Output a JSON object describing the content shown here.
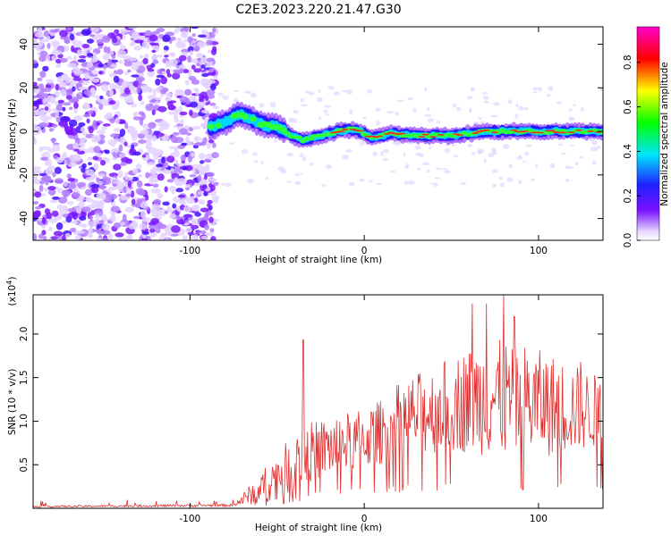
{
  "title": "C2E3.2023.220.21.47.G30",
  "chart_data": [
    {
      "type": "heatmap",
      "xlabel": "Height of straight line (km)",
      "ylabel": "Frequency (Hz)",
      "xlim": [
        -190,
        137
      ],
      "ylim": [
        -50,
        48
      ],
      "xticks": [
        -100,
        0,
        100
      ],
      "yticks": [
        -40,
        -20,
        0,
        20,
        40
      ],
      "colorbar": {
        "label": "Normalized spectral amplitude",
        "range": [
          0.0,
          0.96
        ],
        "ticks": [
          0.0,
          0.2,
          0.4,
          0.6,
          0.8
        ],
        "colors": [
          "#e8dcff",
          "#6a00ff",
          "#1a1aff",
          "#00e5ff",
          "#00ff00",
          "#ffff00",
          "#ff0000",
          "#ff00cc"
        ]
      },
      "ridge_frequency_hz": [
        {
          "x": -88,
          "y": 2
        },
        {
          "x": -80,
          "y": 4
        },
        {
          "x": -72,
          "y": 8
        },
        {
          "x": -65,
          "y": 6
        },
        {
          "x": -58,
          "y": 3
        },
        {
          "x": -50,
          "y": 2
        },
        {
          "x": -42,
          "y": -2
        },
        {
          "x": -35,
          "y": -4
        },
        {
          "x": -25,
          "y": -2
        },
        {
          "x": -15,
          "y": 0
        },
        {
          "x": -5,
          "y": 1
        },
        {
          "x": 5,
          "y": -3
        },
        {
          "x": 15,
          "y": -1
        },
        {
          "x": 30,
          "y": -2
        },
        {
          "x": 50,
          "y": -2
        },
        {
          "x": 70,
          "y": 0
        },
        {
          "x": 90,
          "y": 0
        },
        {
          "x": 110,
          "y": 0
        },
        {
          "x": 137,
          "y": 0
        }
      ],
      "noise_region_x": [
        -190,
        -85
      ]
    },
    {
      "type": "line",
      "xlabel": "Height of straight line (km)",
      "ylabel": "SNR (10 * v/v)",
      "yscale_label": "(x10",
      "yscale_exp": "4",
      "yscale_close": ")",
      "xlim": [
        -190,
        137
      ],
      "ylim": [
        0,
        2.45
      ],
      "xticks": [
        -100,
        0,
        100
      ],
      "yticks": [
        0.5,
        1.0,
        1.5,
        2.0
      ],
      "color": "#e03030",
      "envelope": [
        {
          "x": -190,
          "lo": 0.01,
          "hi": 0.03
        },
        {
          "x": -75,
          "lo": 0.02,
          "hi": 0.05
        },
        {
          "x": -60,
          "lo": 0.05,
          "hi": 0.4
        },
        {
          "x": -50,
          "lo": 0.1,
          "hi": 0.65
        },
        {
          "x": -40,
          "lo": 0.2,
          "hi": 0.85
        },
        {
          "x": -30,
          "lo": 0.3,
          "hi": 1.0
        },
        {
          "x": -20,
          "lo": 0.35,
          "hi": 1.05
        },
        {
          "x": -10,
          "lo": 0.4,
          "hi": 1.1
        },
        {
          "x": 0,
          "lo": 0.45,
          "hi": 1.15
        },
        {
          "x": 10,
          "lo": 0.5,
          "hi": 1.25
        },
        {
          "x": 20,
          "lo": 0.55,
          "hi": 1.45
        },
        {
          "x": 30,
          "lo": 0.6,
          "hi": 1.55
        },
        {
          "x": 50,
          "lo": 0.65,
          "hi": 1.75
        },
        {
          "x": 70,
          "lo": 0.6,
          "hi": 1.95
        },
        {
          "x": 90,
          "lo": 0.55,
          "hi": 1.9
        },
        {
          "x": 110,
          "lo": 0.6,
          "hi": 1.75
        },
        {
          "x": 137,
          "lo": 0.7,
          "hi": 1.5
        }
      ],
      "spikes": [
        {
          "x": -35,
          "y": 1.93
        },
        {
          "x": 62,
          "y": 2.35
        },
        {
          "x": 70,
          "y": 2.35
        },
        {
          "x": 80,
          "y": 2.45
        },
        {
          "x": 86,
          "y": 2.2
        },
        {
          "x": 124,
          "y": 1.68
        }
      ]
    }
  ]
}
